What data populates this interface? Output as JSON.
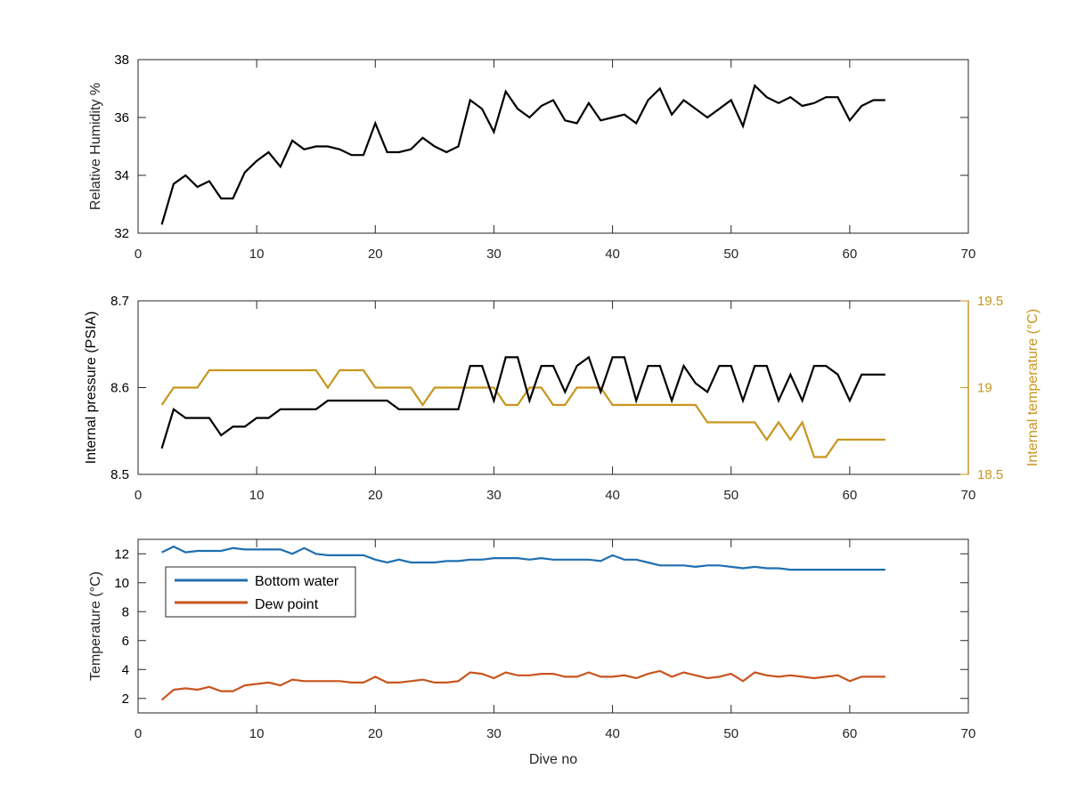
{
  "xlabel": "Dive no",
  "colors": {
    "axis": "#262626",
    "humidity": "#000000",
    "pressure": "#000000",
    "internal_temp": "#c8961e",
    "bottom_water": "#1f6fb0",
    "dew_point": "#c8551e"
  },
  "chart_data": [
    {
      "type": "line",
      "title": "",
      "xlabel": "",
      "ylabel": "Relative Humidity %",
      "xlim": [
        0,
        70
      ],
      "ylim": [
        32,
        38
      ],
      "xticks": [
        0,
        10,
        20,
        30,
        40,
        50,
        60,
        70
      ],
      "yticks": [
        32,
        34,
        36,
        38
      ],
      "grid": false,
      "series": [
        {
          "axis": "left",
          "color": "#000000",
          "x": [
            2,
            3,
            4,
            5,
            6,
            7,
            8,
            9,
            10,
            11,
            12,
            13,
            14,
            15,
            16,
            17,
            18,
            19,
            20,
            21,
            22,
            23,
            24,
            25,
            26,
            27,
            28,
            29,
            30,
            31,
            32,
            33,
            34,
            35,
            36,
            37,
            38,
            39,
            40,
            41,
            42,
            43,
            44,
            45,
            46,
            47,
            48,
            49,
            50,
            51,
            52,
            53,
            54,
            55,
            56,
            57,
            58,
            59,
            60,
            61,
            62,
            63
          ],
          "y": [
            32.3,
            33.7,
            34.0,
            33.6,
            33.8,
            33.2,
            33.2,
            34.1,
            34.5,
            34.8,
            34.3,
            35.2,
            34.9,
            35.0,
            35.0,
            34.9,
            34.7,
            34.7,
            35.8,
            34.8,
            34.8,
            34.9,
            35.3,
            35.0,
            34.8,
            35.0,
            36.6,
            36.3,
            35.5,
            36.9,
            36.3,
            36.0,
            36.4,
            36.6,
            35.9,
            35.8,
            36.5,
            35.9,
            36.0,
            36.1,
            35.8,
            36.6,
            37.0,
            36.1,
            36.6,
            36.3,
            36.0,
            36.3,
            36.6,
            35.7,
            37.1,
            36.7,
            36.5,
            36.7,
            36.4,
            36.5,
            36.7,
            36.7,
            35.9,
            36.4,
            36.6,
            36.6
          ]
        }
      ]
    },
    {
      "type": "line",
      "title": "",
      "xlabel": "",
      "ylabel": "Internal pressure (PSIA)",
      "ylabel_right": "Internal temperature (°C)",
      "xlim": [
        0,
        70
      ],
      "ylim": [
        8.5,
        8.7
      ],
      "ylim_right": [
        18.5,
        19.5
      ],
      "xticks": [
        0,
        10,
        20,
        30,
        40,
        50,
        60,
        70
      ],
      "yticks": [
        8.5,
        8.6,
        8.7
      ],
      "yticks_right": [
        18.5,
        19,
        19.5
      ],
      "grid": false,
      "series": [
        {
          "axis": "right",
          "color": "#c8961e",
          "x": [
            2,
            3,
            4,
            5,
            6,
            7,
            8,
            9,
            10,
            11,
            12,
            13,
            14,
            15,
            16,
            17,
            18,
            19,
            20,
            21,
            22,
            23,
            24,
            25,
            26,
            27,
            28,
            29,
            30,
            31,
            32,
            33,
            34,
            35,
            36,
            37,
            38,
            39,
            40,
            41,
            42,
            43,
            44,
            45,
            46,
            47,
            48,
            49,
            50,
            51,
            52,
            53,
            54,
            55,
            56,
            57,
            58,
            59,
            60,
            61,
            62,
            63
          ],
          "y": [
            18.9,
            19.0,
            19.0,
            19.0,
            19.1,
            19.1,
            19.1,
            19.1,
            19.1,
            19.1,
            19.1,
            19.1,
            19.1,
            19.1,
            19.0,
            19.1,
            19.1,
            19.1,
            19.0,
            19.0,
            19.0,
            19.0,
            18.9,
            19.0,
            19.0,
            19.0,
            19.0,
            19.0,
            19.0,
            18.9,
            18.9,
            19.0,
            19.0,
            18.9,
            18.9,
            19.0,
            19.0,
            19.0,
            18.9,
            18.9,
            18.9,
            18.9,
            18.9,
            18.9,
            18.9,
            18.9,
            18.8,
            18.8,
            18.8,
            18.8,
            18.8,
            18.7,
            18.8,
            18.7,
            18.8,
            18.6,
            18.6,
            18.7,
            18.7,
            18.7,
            18.7,
            18.7
          ]
        },
        {
          "axis": "left",
          "color": "#000000",
          "x": [
            2,
            3,
            4,
            5,
            6,
            7,
            8,
            9,
            10,
            11,
            12,
            13,
            14,
            15,
            16,
            17,
            18,
            19,
            20,
            21,
            22,
            23,
            24,
            25,
            26,
            27,
            28,
            29,
            30,
            31,
            32,
            33,
            34,
            35,
            36,
            37,
            38,
            39,
            40,
            41,
            42,
            43,
            44,
            45,
            46,
            47,
            48,
            49,
            50,
            51,
            52,
            53,
            54,
            55,
            56,
            57,
            58,
            59,
            60,
            61,
            62,
            63
          ],
          "y": [
            8.53,
            8.575,
            8.565,
            8.565,
            8.565,
            8.545,
            8.555,
            8.555,
            8.565,
            8.565,
            8.575,
            8.575,
            8.575,
            8.575,
            8.585,
            8.585,
            8.585,
            8.585,
            8.585,
            8.585,
            8.575,
            8.575,
            8.575,
            8.575,
            8.575,
            8.575,
            8.625,
            8.625,
            8.585,
            8.635,
            8.635,
            8.585,
            8.625,
            8.625,
            8.595,
            8.625,
            8.635,
            8.595,
            8.635,
            8.635,
            8.585,
            8.625,
            8.625,
            8.585,
            8.625,
            8.605,
            8.595,
            8.625,
            8.625,
            8.585,
            8.625,
            8.625,
            8.585,
            8.615,
            8.585,
            8.625,
            8.625,
            8.615,
            8.585,
            8.615,
            8.615,
            8.615
          ]
        }
      ]
    },
    {
      "type": "line",
      "title": "",
      "xlabel": "Dive no",
      "ylabel": "Temperature (°C)",
      "xlim": [
        0,
        70
      ],
      "ylim": [
        1,
        13
      ],
      "xticks": [
        0,
        10,
        20,
        30,
        40,
        50,
        60,
        70
      ],
      "yticks": [
        2,
        4,
        6,
        8,
        10,
        12
      ],
      "grid": false,
      "legend": "top-left",
      "series": [
        {
          "name": "Bottom water",
          "axis": "left",
          "color": "#1f6fb0",
          "x": [
            2,
            3,
            4,
            5,
            6,
            7,
            8,
            9,
            10,
            11,
            12,
            13,
            14,
            15,
            16,
            17,
            18,
            19,
            20,
            21,
            22,
            23,
            24,
            25,
            26,
            27,
            28,
            29,
            30,
            31,
            32,
            33,
            34,
            35,
            36,
            37,
            38,
            39,
            40,
            41,
            42,
            43,
            44,
            45,
            46,
            47,
            48,
            49,
            50,
            51,
            52,
            53,
            54,
            55,
            56,
            57,
            58,
            59,
            60,
            61,
            62,
            63
          ],
          "y": [
            12.1,
            12.5,
            12.1,
            12.2,
            12.2,
            12.2,
            12.4,
            12.3,
            12.3,
            12.3,
            12.3,
            12.0,
            12.4,
            12.0,
            11.9,
            11.9,
            11.9,
            11.9,
            11.6,
            11.4,
            11.6,
            11.4,
            11.4,
            11.4,
            11.5,
            11.5,
            11.6,
            11.6,
            11.7,
            11.7,
            11.7,
            11.6,
            11.7,
            11.6,
            11.6,
            11.6,
            11.6,
            11.5,
            11.9,
            11.6,
            11.6,
            11.4,
            11.2,
            11.2,
            11.2,
            11.1,
            11.2,
            11.2,
            11.1,
            11.0,
            11.1,
            11.0,
            11.0,
            10.9,
            10.9,
            10.9,
            10.9,
            10.9,
            10.9,
            10.9,
            10.9,
            10.9
          ]
        },
        {
          "name": "Dew point",
          "axis": "left",
          "color": "#c8551e",
          "x": [
            2,
            3,
            4,
            5,
            6,
            7,
            8,
            9,
            10,
            11,
            12,
            13,
            14,
            15,
            16,
            17,
            18,
            19,
            20,
            21,
            22,
            23,
            24,
            25,
            26,
            27,
            28,
            29,
            30,
            31,
            32,
            33,
            34,
            35,
            36,
            37,
            38,
            39,
            40,
            41,
            42,
            43,
            44,
            45,
            46,
            47,
            48,
            49,
            50,
            51,
            52,
            53,
            54,
            55,
            56,
            57,
            58,
            59,
            60,
            61,
            62,
            63
          ],
          "y": [
            1.9,
            2.6,
            2.7,
            2.6,
            2.8,
            2.5,
            2.5,
            2.9,
            3.0,
            3.1,
            2.9,
            3.3,
            3.2,
            3.2,
            3.2,
            3.2,
            3.1,
            3.1,
            3.5,
            3.1,
            3.1,
            3.2,
            3.3,
            3.1,
            3.1,
            3.2,
            3.8,
            3.7,
            3.4,
            3.8,
            3.6,
            3.6,
            3.7,
            3.7,
            3.5,
            3.5,
            3.8,
            3.5,
            3.5,
            3.6,
            3.4,
            3.7,
            3.9,
            3.5,
            3.8,
            3.6,
            3.4,
            3.5,
            3.7,
            3.2,
            3.8,
            3.6,
            3.5,
            3.6,
            3.5,
            3.4,
            3.5,
            3.6,
            3.2,
            3.5,
            3.5,
            3.5
          ]
        }
      ]
    }
  ]
}
